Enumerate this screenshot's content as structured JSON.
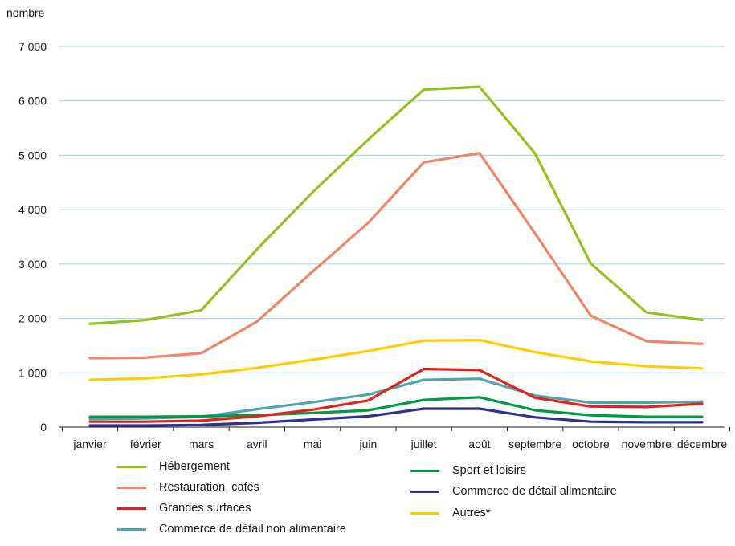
{
  "chart_data": {
    "type": "line",
    "ylabel": "nombre",
    "xlabel": "",
    "ylim": [
      0,
      7000
    ],
    "yticks": [
      0,
      1000,
      2000,
      3000,
      4000,
      5000,
      6000,
      7000
    ],
    "ytick_labels": [
      "0",
      "1 000",
      "2 000",
      "3 000",
      "4 000",
      "5 000",
      "6 000",
      "7 000"
    ],
    "categories": [
      "janvier",
      "février",
      "mars",
      "avril",
      "mai",
      "juin",
      "juillet",
      "août",
      "septembre",
      "octobre",
      "novembre",
      "décembre"
    ],
    "grid": true,
    "legend_position": "bottom",
    "series": [
      {
        "name": "Hébergement",
        "color": "#95c11f",
        "values": [
          1900,
          1970,
          2150,
          3270,
          4320,
          5290,
          6210,
          6260,
          5030,
          3010,
          2110,
          1970
        ]
      },
      {
        "name": "Restauration, cafés",
        "color": "#f08563",
        "values": [
          1270,
          1280,
          1360,
          1940,
          2860,
          3760,
          4870,
          5040,
          3560,
          2050,
          1580,
          1530
        ]
      },
      {
        "name": "Grandes surfaces",
        "color": "#e2231a",
        "values": [
          100,
          100,
          120,
          200,
          320,
          490,
          1070,
          1050,
          540,
          380,
          370,
          430
        ]
      },
      {
        "name": "Commerce de détail non alimentaire",
        "color": "#4da5ad",
        "values": [
          150,
          160,
          190,
          330,
          460,
          600,
          870,
          890,
          580,
          450,
          450,
          470
        ]
      },
      {
        "name": "Sport et loisirs",
        "color": "#009a44",
        "values": [
          190,
          190,
          200,
          220,
          260,
          310,
          500,
          550,
          310,
          220,
          190,
          190
        ]
      },
      {
        "name": "Commerce de détail alimentaire",
        "color": "#2e3192",
        "values": [
          30,
          30,
          40,
          80,
          140,
          200,
          340,
          340,
          180,
          100,
          90,
          90
        ]
      },
      {
        "name": "Autres*",
        "color": "#ffcc00",
        "values": [
          870,
          900,
          970,
          1090,
          1240,
          1400,
          1590,
          1600,
          1380,
          1210,
          1120,
          1080
        ]
      }
    ]
  }
}
